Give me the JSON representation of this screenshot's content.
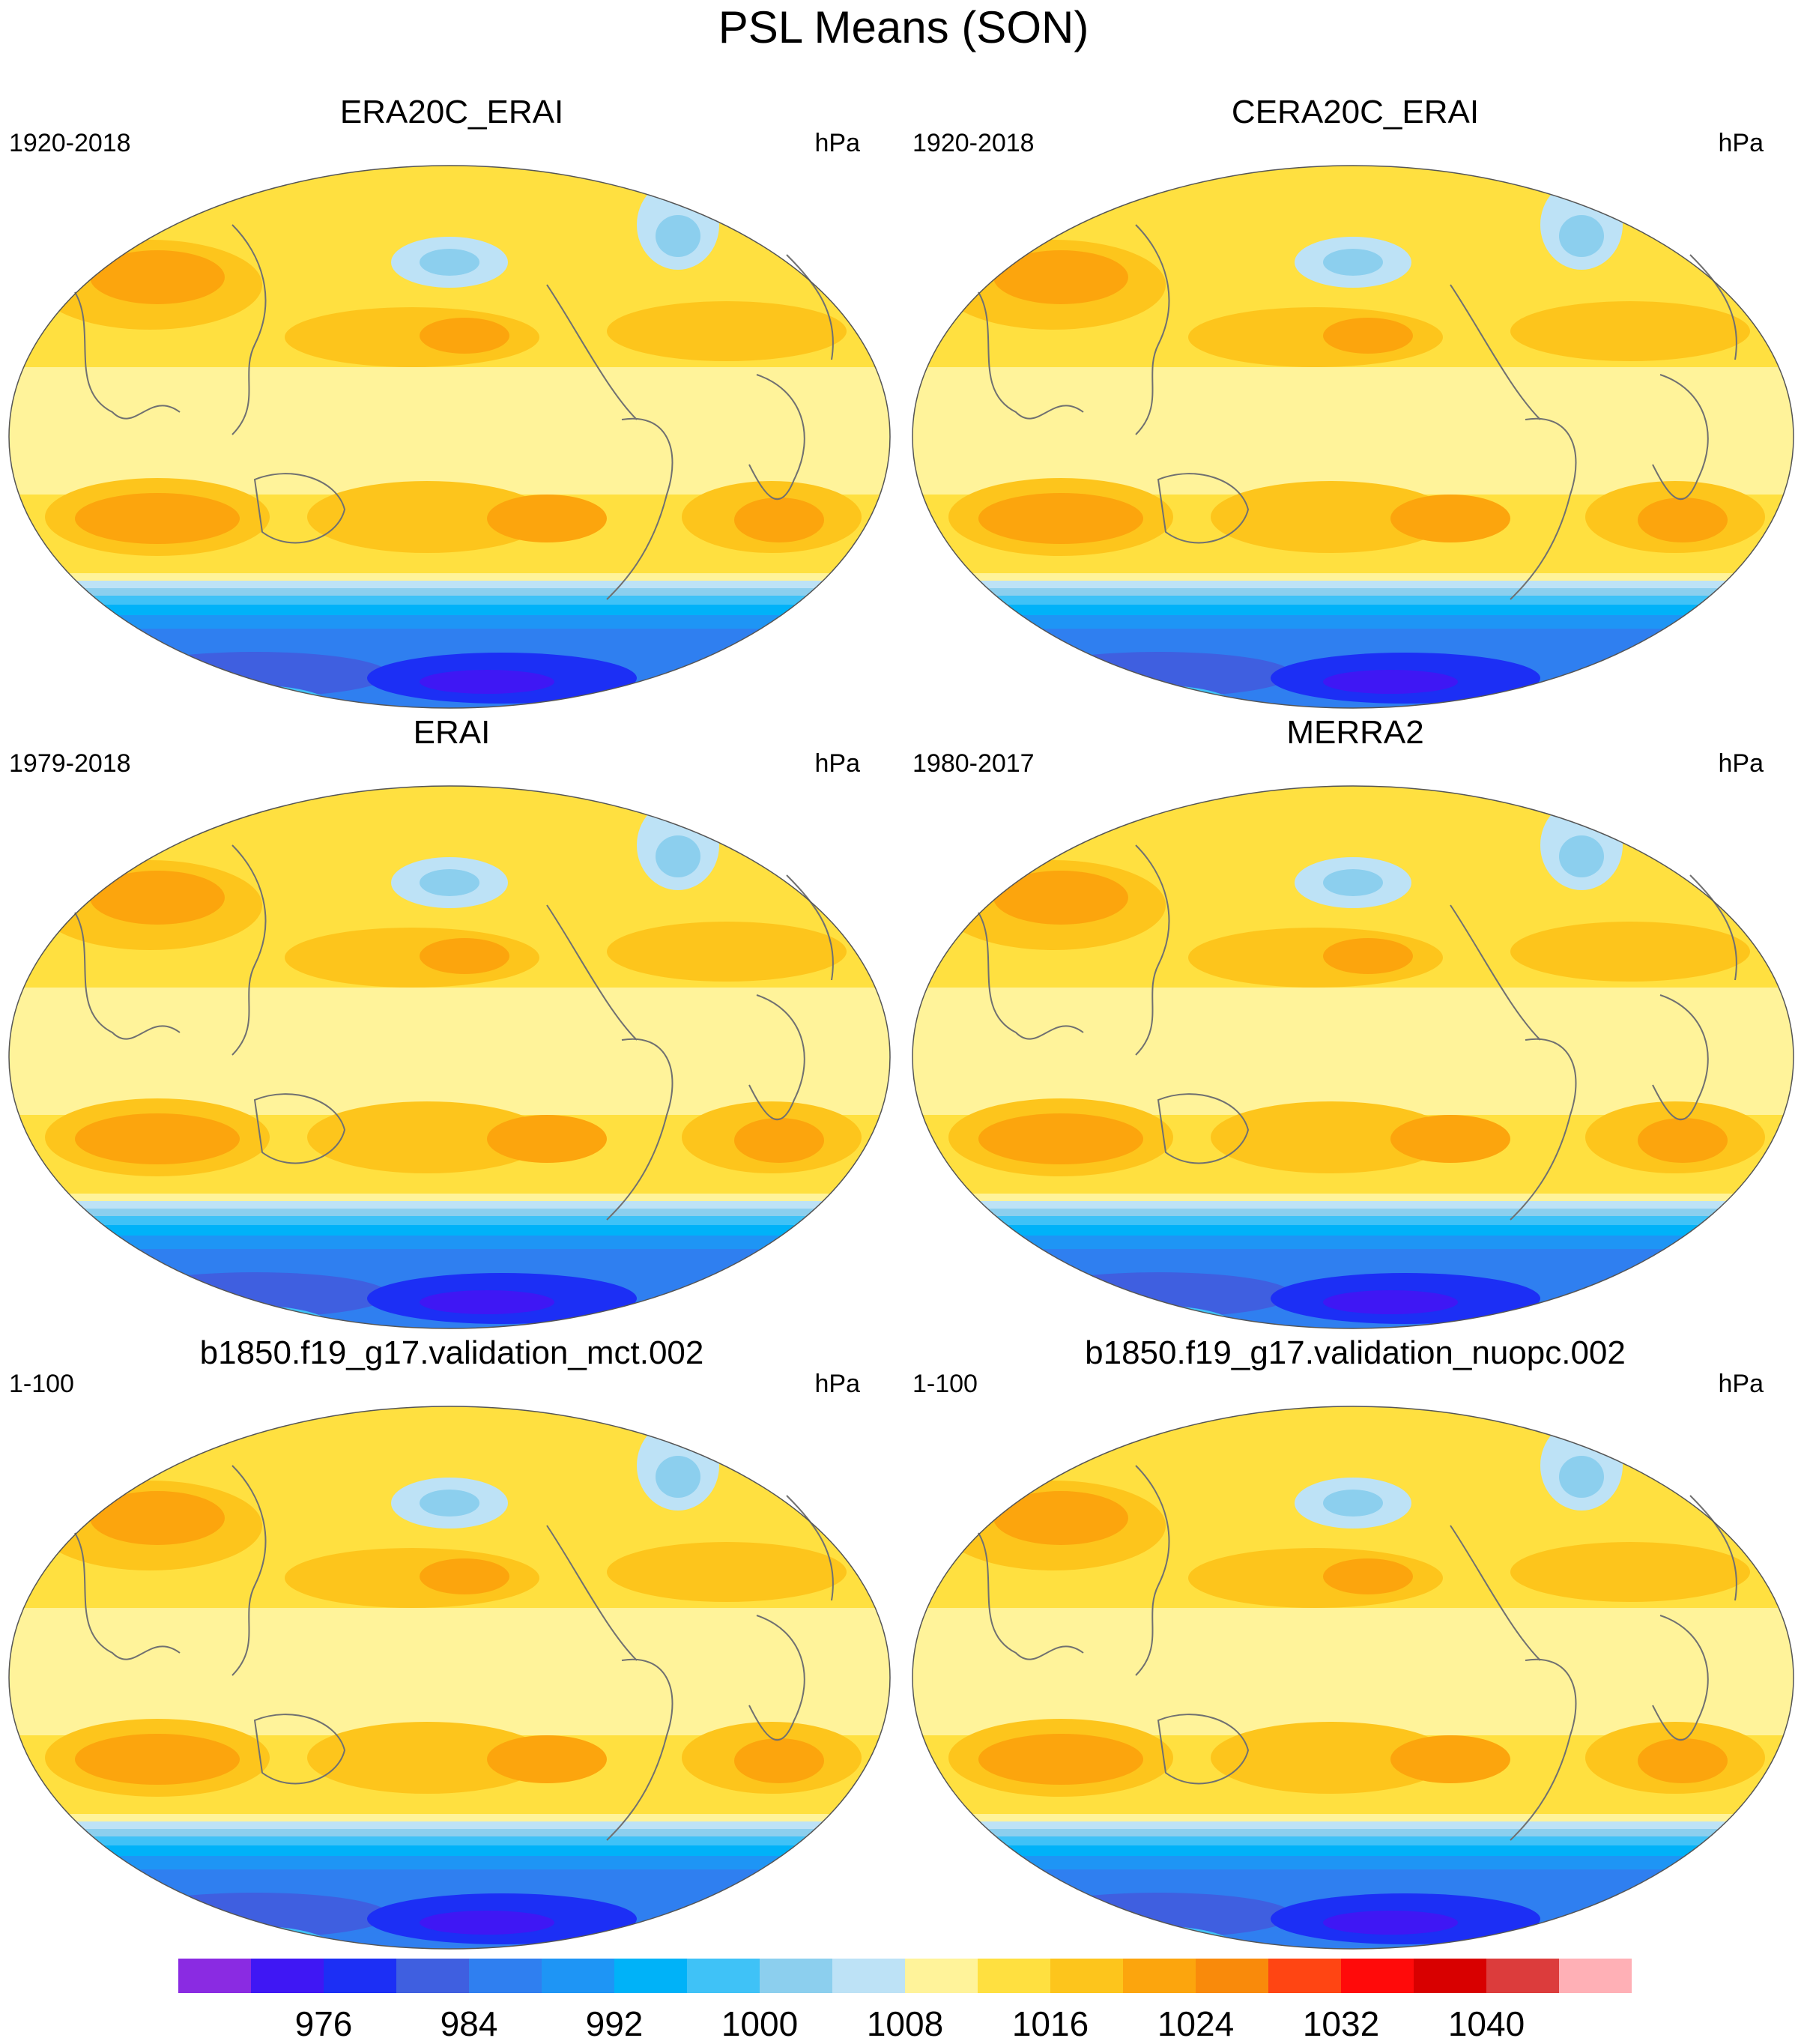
{
  "figure": {
    "title": "PSL Means (SON)"
  },
  "panels": [
    {
      "title": "ERA20C_ERAI",
      "period": "1920-2018",
      "units": "hPa"
    },
    {
      "title": "CERA20C_ERAI",
      "period": "1920-2018",
      "units": "hPa"
    },
    {
      "title": "ERAI",
      "period": "1979-2018",
      "units": "hPa"
    },
    {
      "title": "MERRA2",
      "period": "1980-2017",
      "units": "hPa"
    },
    {
      "title": "b1850.f19_g17.validation_mct.002",
      "period": "1-100",
      "units": "hPa"
    },
    {
      "title": "b1850.f19_g17.validation_nuopc.002",
      "period": "1-100",
      "units": "hPa"
    }
  ],
  "colorbar": {
    "labels": [
      "976",
      "984",
      "992",
      "1000",
      "1008",
      "1016",
      "1024",
      "1032",
      "1040"
    ],
    "colors": [
      "#8a2be2",
      "#3f17f4",
      "#1c2ff5",
      "#3f5fe0",
      "#2f7ff0",
      "#1e95f5",
      "#00b2f8",
      "#3fc2f7",
      "#8ccfee",
      "#bde2f6",
      "#fff39a",
      "#ffe040",
      "#fdc51c",
      "#fca50d",
      "#f98a0b",
      "#ff4513",
      "#ff0a0a",
      "#d80000",
      "#dc3c3c",
      "#ffb0b6"
    ]
  }
}
